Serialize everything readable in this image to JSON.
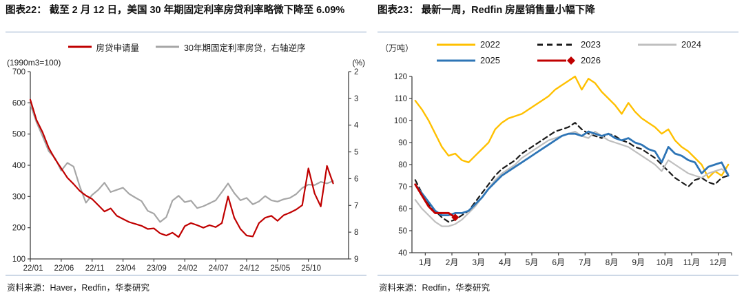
{
  "panels": [
    {
      "title": "图表22：  截至 2 月 12 日，美国 30 年期固定利率房贷利率略微下降至 6.09%",
      "source": "资料来源：Haver，Redfin，华泰研究"
    },
    {
      "title": "图表23：  最新一周，Redfin 房屋销售量小幅下降",
      "source": "资料来源：Redfin，华泰研究"
    }
  ],
  "colors": {
    "accent_red": "#C00000",
    "gray_line": "#A6A6A6",
    "yellow": "#FFC000",
    "light_gray": "#BFBFBF",
    "blue": "#2E75B6",
    "dashed_black": "#1A1A1A",
    "separator_blue": "#8CA6C6",
    "axis": "#404040"
  },
  "chart_data": [
    {
      "type": "line",
      "title": "图表22：截至 2 月 12 日，美国 30 年期固定利率房贷利率略微下降至 6.09%",
      "left_axis_label": "(1990m3=100)",
      "right_axis_label": "(%)",
      "x_start": "2022-01",
      "x_end": "2026-02",
      "frequency": "monthly",
      "x_tick_labels": [
        "22/01",
        "22/06",
        "22/11",
        "23/04",
        "23/09",
        "24/02",
        "24/07",
        "24/12",
        "25/05",
        "25/10"
      ],
      "x_tick_positions": [
        0,
        5,
        10,
        15,
        20,
        25,
        30,
        35,
        40,
        45
      ],
      "x_domain_max": 51.5,
      "ylim_left": [
        100,
        700
      ],
      "left_ticks": [
        700,
        600,
        500,
        400,
        300,
        200,
        100
      ],
      "ylim_right": [
        2,
        9
      ],
      "right_ticks": [
        2,
        3,
        4,
        5,
        6,
        7,
        8,
        9
      ],
      "right_axis_inverted": true,
      "grid": false,
      "legend_position": "top-center",
      "series": [
        {
          "name": "房贷申请量",
          "axis": "left",
          "color": "#C00000",
          "width": 2.2,
          "values": [
            610,
            545,
            505,
            455,
            420,
            390,
            360,
            340,
            318,
            303,
            292,
            272,
            252,
            262,
            238,
            228,
            218,
            212,
            206,
            196,
            198,
            182,
            175,
            184,
            170,
            205,
            215,
            208,
            200,
            208,
            202,
            215,
            300,
            232,
            196,
            175,
            172,
            215,
            232,
            238,
            222,
            240,
            248,
            258,
            272,
            390,
            310,
            268,
            398,
            342
          ]
        },
        {
          "name": "30年期固定利率房贷，右轴逆序",
          "axis": "right_inverted",
          "color": "#A6A6A6",
          "width": 2.2,
          "values": [
            3.22,
            3.89,
            4.42,
            4.98,
            5.23,
            5.7,
            5.41,
            5.55,
            6.29,
            6.9,
            6.61,
            6.42,
            6.15,
            6.5,
            6.42,
            6.34,
            6.57,
            6.71,
            6.84,
            7.2,
            7.31,
            7.62,
            7.44,
            6.82,
            6.64,
            6.88,
            6.82,
            7.1,
            7.03,
            6.92,
            6.81,
            6.5,
            6.18,
            6.54,
            6.81,
            6.72,
            6.96,
            6.85,
            6.65,
            6.81,
            6.86,
            6.77,
            6.72,
            6.58,
            6.35,
            6.22,
            6.24,
            6.12,
            6.18,
            6.09
          ]
        }
      ]
    },
    {
      "type": "line",
      "title": "图表23：最新一周，Redfin 房屋销售量小幅下降",
      "unit_label": "（万吨）",
      "frequency": "weekly (4 points per month)",
      "x_tick_labels": [
        "1月",
        "2月",
        "3月",
        "4月",
        "5月",
        "6月",
        "7月",
        "8月",
        "9月",
        "10月",
        "11月",
        "12月"
      ],
      "points_per_month": 4,
      "ylim": [
        40,
        120
      ],
      "y_ticks": [
        120,
        110,
        100,
        90,
        80,
        70,
        60,
        50,
        40
      ],
      "grid": false,
      "legend_position": "top",
      "legend_rows": [
        [
          0,
          1,
          2
        ],
        [
          3,
          4
        ]
      ],
      "series": [
        {
          "name": "2022",
          "color": "#FFC000",
          "width": 2.4,
          "values": [
            109,
            105,
            100,
            94,
            88,
            84,
            85,
            82,
            81,
            84,
            87,
            90,
            96,
            99,
            101,
            102,
            103,
            105,
            107,
            109,
            111,
            114,
            116,
            118,
            120,
            114,
            119,
            117,
            113,
            110,
            107,
            103,
            108,
            104,
            101,
            99,
            97,
            94,
            96,
            91,
            88,
            86,
            83,
            80,
            74,
            77,
            75,
            80
          ]
        },
        {
          "name": "2023",
          "color": "#1A1A1A",
          "dash": true,
          "width": 2.2,
          "values": [
            73,
            67,
            62,
            59,
            56,
            54,
            55,
            57,
            59,
            63,
            67,
            71,
            75,
            78,
            80,
            82,
            85,
            87,
            89,
            91,
            93,
            95,
            96,
            97,
            99,
            96,
            94,
            93,
            92,
            94,
            93,
            91,
            90,
            88,
            87,
            85,
            83,
            80,
            77,
            74,
            72,
            70,
            73,
            74,
            72,
            71,
            74,
            75
          ]
        },
        {
          "name": "2024",
          "color": "#BFBFBF",
          "width": 2.2,
          "values": [
            64,
            60,
            57,
            54,
            52,
            52,
            53,
            55,
            58,
            61,
            65,
            69,
            73,
            76,
            78,
            80,
            83,
            85,
            87,
            89,
            91,
            92,
            93,
            94,
            95,
            93,
            92,
            95,
            93,
            91,
            90,
            89,
            88,
            86,
            84,
            82,
            80,
            77,
            82,
            80,
            78,
            76,
            75,
            74,
            76,
            77,
            78,
            76
          ]
        },
        {
          "name": "2025",
          "color": "#2E75B6",
          "width": 2.8,
          "values": [
            71,
            67,
            63,
            59,
            57,
            57,
            58,
            58,
            59,
            62,
            65,
            69,
            72,
            75,
            77,
            79,
            81,
            83,
            85,
            87,
            89,
            91,
            93,
            94,
            94,
            93,
            95,
            94,
            93,
            94,
            92,
            91,
            92,
            90,
            89,
            87,
            86,
            81,
            88,
            85,
            84,
            82,
            81,
            76,
            79,
            80,
            81,
            75
          ]
        },
        {
          "name": "2026",
          "color": "#C00000",
          "width": 3,
          "marker_end": "diamond",
          "values": [
            71,
            66,
            61,
            58,
            58,
            58,
            56
          ]
        }
      ]
    }
  ]
}
